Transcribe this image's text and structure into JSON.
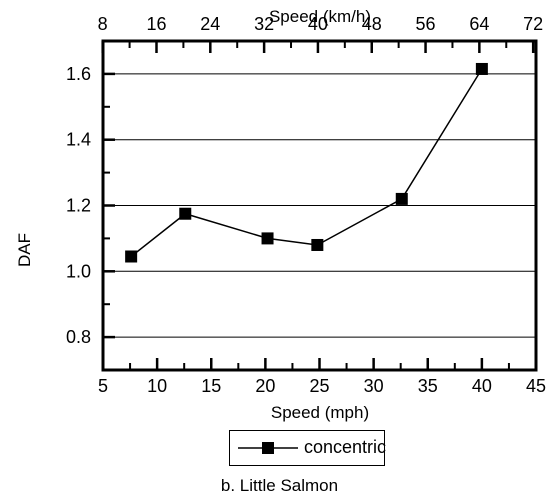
{
  "chart_data": {
    "type": "line",
    "xlabel": "Speed (mph)",
    "x_ticks": [
      5,
      10,
      15,
      20,
      25,
      30,
      35,
      40,
      45
    ],
    "xlim": [
      5,
      45
    ],
    "x2label": "Speed (km/h)",
    "x2_ticks": [
      8,
      16,
      24,
      32,
      40,
      48,
      56,
      64,
      72
    ],
    "ylabel": "DAF",
    "y_ticks": [
      "0.8",
      "1.0",
      "1.2",
      "1.4",
      "1.6"
    ],
    "ylim": [
      0.7,
      1.7
    ],
    "grid": "horizontal",
    "series": [
      {
        "name": "concentric",
        "x": [
          7.6,
          12.6,
          20.2,
          24.8,
          32.6,
          40.0
        ],
        "y": [
          1.045,
          1.175,
          1.1,
          1.08,
          1.22,
          1.615
        ]
      }
    ],
    "caption": "b.  Little Salmon"
  }
}
